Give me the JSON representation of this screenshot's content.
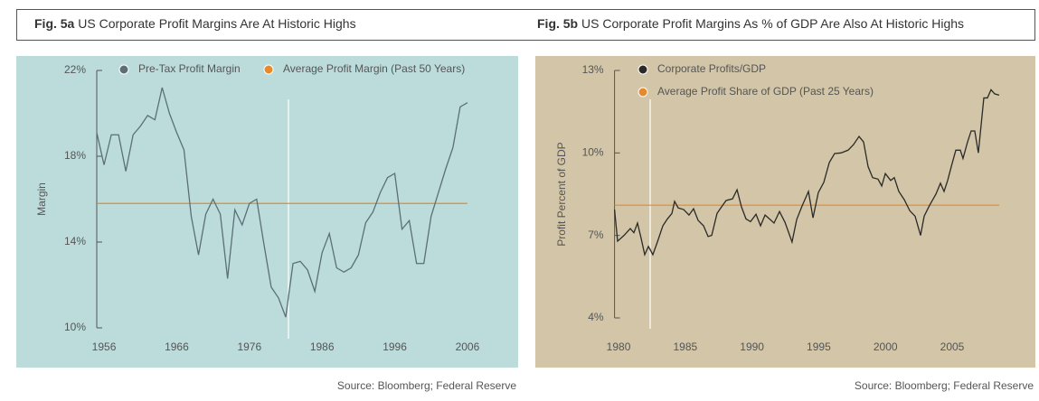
{
  "chart_data": [
    {
      "type": "line",
      "label": "Fig. 5a",
      "title": "US Corporate Profit Margins Are At Historic Highs",
      "y_label": "Margin",
      "source": "Source: Bloomberg; Federal Reserve",
      "xlim": [
        1955,
        2008
      ],
      "xticks": [
        1956,
        1966,
        1976,
        1986,
        1996,
        2006
      ],
      "ylim": [
        10,
        22
      ],
      "yticks": [
        {
          "value": 10,
          "label": "10%"
        },
        {
          "value": 14,
          "label": "14%"
        },
        {
          "value": 18,
          "label": "18%"
        },
        {
          "value": 22,
          "label": "22%"
        }
      ],
      "legend": "top",
      "series": [
        {
          "name": "Pre-Tax Profit Margin",
          "color": "#5b6f75",
          "x": [
            1955,
            1956,
            1957,
            1958,
            1959,
            1960,
            1961,
            1962,
            1963,
            1964,
            1965,
            1966,
            1967,
            1968,
            1969,
            1970,
            1971,
            1972,
            1973,
            1974,
            1975,
            1976,
            1977,
            1978,
            1979,
            1980,
            1981,
            1982,
            1983,
            1984,
            1985,
            1986,
            1987,
            1988,
            1989,
            1990,
            1991,
            1992,
            1993,
            1994,
            1995,
            1996,
            1997,
            1998,
            1999,
            2000,
            2001,
            2002,
            2003,
            2004,
            2005,
            2006
          ],
          "values": [
            19.1,
            17.6,
            19.0,
            19.0,
            17.3,
            19.0,
            19.4,
            19.9,
            19.7,
            21.2,
            20.0,
            19.1,
            18.3,
            15.2,
            13.4,
            15.3,
            16.0,
            15.3,
            12.3,
            15.5,
            14.8,
            15.8,
            16.0,
            13.9,
            11.9,
            11.4,
            10.5,
            13.0,
            13.1,
            12.7,
            11.7,
            13.5,
            14.4,
            12.8,
            12.6,
            12.8,
            13.4,
            14.9,
            15.4,
            16.3,
            17.0,
            17.2,
            14.6,
            15.0,
            13.0,
            13.0,
            15.2,
            16.3,
            17.4,
            18.4,
            20.3,
            20.5
          ]
        }
      ],
      "average": {
        "name": "Average Profit Margin (Past 50 Years)",
        "color": "#e8892a",
        "value": 15.8
      }
    },
    {
      "type": "line",
      "label": "Fig. 5b",
      "title": "US Corporate Profit Margins As % of GDP Are Also At Historic Highs",
      "y_label": "Profit Percent of GDP",
      "source": "Source: Bloomberg; Federal Reserve",
      "xlim": [
        1979.7,
        2010
      ],
      "xticks": [
        1980,
        1985,
        1990,
        1995,
        2000,
        2005
      ],
      "ylim": [
        4,
        13
      ],
      "yticks": [
        {
          "value": 4,
          "label": "4%"
        },
        {
          "value": 7,
          "label": "7%"
        },
        {
          "value": 10,
          "label": "10%"
        },
        {
          "value": 13,
          "label": "13%"
        }
      ],
      "legend": "top-left",
      "series": [
        {
          "name": "Corporate Profits/GDP",
          "color": "#2b2a26",
          "x": [
            1979.7,
            1979.93,
            1980.41,
            1980.88,
            1981.15,
            1981.42,
            1981.69,
            1981.96,
            1982.24,
            1982.57,
            1982.91,
            1983.32,
            1983.66,
            1984.0,
            1984.2,
            1984.47,
            1984.88,
            1985.28,
            1985.62,
            1985.96,
            1986.37,
            1986.71,
            1986.98,
            1987.38,
            1987.72,
            1988.06,
            1988.54,
            1988.88,
            1989.21,
            1989.55,
            1989.89,
            1990.3,
            1990.64,
            1990.98,
            1991.31,
            1991.65,
            1992.06,
            1992.47,
            1993.0,
            1993.35,
            1993.75,
            1994.23,
            1994.57,
            1994.97,
            1995.38,
            1995.79,
            1996.19,
            1996.67,
            1997.2,
            1997.6,
            1998.02,
            1998.36,
            1998.7,
            1999.04,
            1999.44,
            1999.72,
            1999.99,
            2000.39,
            2000.66,
            2001.0,
            2001.41,
            2001.82,
            2002.22,
            2002.63,
            2002.9,
            2003.31,
            2003.78,
            2004.12,
            2004.39,
            2004.66,
            2004.93,
            2005.27,
            2005.61,
            2005.81,
            2006.15,
            2006.42,
            2006.69,
            2006.96,
            2007.37,
            2007.64,
            2007.91,
            2008.18,
            2008.52
          ],
          "values": [
            7.94,
            6.79,
            7.0,
            7.25,
            7.1,
            7.45,
            6.9,
            6.3,
            6.6,
            6.3,
            6.76,
            7.35,
            7.6,
            7.8,
            8.24,
            8.0,
            7.94,
            7.74,
            7.97,
            7.55,
            7.35,
            6.96,
            7.0,
            7.8,
            8.04,
            8.27,
            8.33,
            8.66,
            8.04,
            7.6,
            7.5,
            7.77,
            7.35,
            7.74,
            7.6,
            7.45,
            7.87,
            7.48,
            6.76,
            7.58,
            8.07,
            8.6,
            7.64,
            8.56,
            8.93,
            9.65,
            9.98,
            10.0,
            10.1,
            10.3,
            10.6,
            10.4,
            9.5,
            9.1,
            9.05,
            8.8,
            9.25,
            9.0,
            9.1,
            8.6,
            8.3,
            7.9,
            7.7,
            7.0,
            7.7,
            8.1,
            8.5,
            8.9,
            8.6,
            9.0,
            9.5,
            10.1,
            10.1,
            9.8,
            10.4,
            10.8,
            10.8,
            10.0,
            12.0,
            12.0,
            12.3,
            12.15,
            12.1
          ]
        }
      ],
      "average": {
        "name": "Average Profit Share of GDP (Past 25 Years)",
        "color": "#e8892a",
        "value": 8.1
      }
    }
  ]
}
